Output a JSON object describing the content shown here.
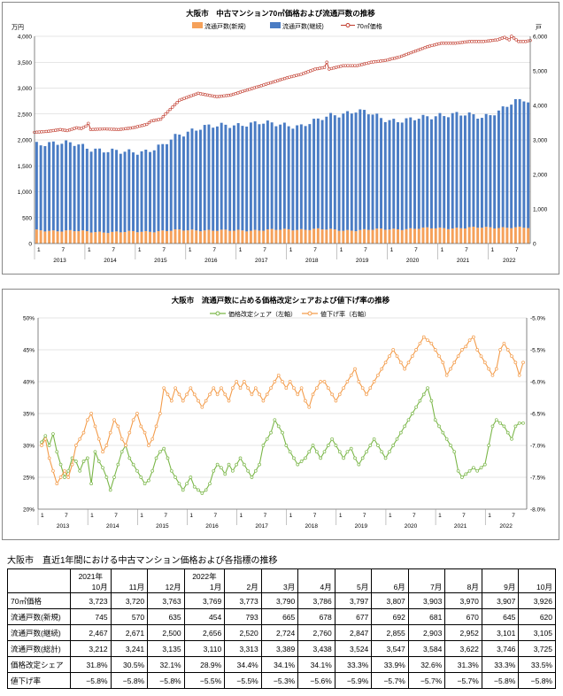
{
  "chart_data": [
    {
      "type": "bar",
      "title": "大阪市　中古マンション70㎡価格および流通戸数の推移",
      "left_unit": "万円",
      "right_unit": "戸",
      "ylim_left": [
        0,
        4000
      ],
      "ylim_right": [
        0,
        6000
      ],
      "left_ticks": [
        "0",
        "500",
        "1,000",
        "1,500",
        "2,000",
        "2,500",
        "3,000",
        "3,500",
        "4,000"
      ],
      "right_ticks": [
        "0",
        "1,000",
        "2,000",
        "3,000",
        "4,000",
        "5,000",
        "6,000"
      ],
      "legend": [
        "流通戸数(新規)",
        "流通戸数(継続)",
        "70㎡価格"
      ],
      "legend_position": "top-right",
      "colors": {
        "new": "#f5a15a",
        "cont": "#4a7cc4",
        "price": "#c0392b"
      },
      "years": [
        "2013",
        "2014",
        "2015",
        "2016",
        "2017",
        "2018",
        "2019",
        "2020",
        "2021",
        "2022"
      ],
      "month_ticks": [
        "1",
        "7"
      ],
      "series_anchors": {
        "price": [
          [
            0,
            3220
          ],
          [
            6,
            3250
          ],
          [
            11,
            3300
          ],
          [
            14,
            3270
          ],
          [
            18,
            3350
          ],
          [
            20,
            3330
          ],
          [
            22,
            3400
          ],
          [
            23,
            3480
          ],
          [
            24,
            3300
          ],
          [
            30,
            3320
          ],
          [
            36,
            3300
          ],
          [
            42,
            3350
          ],
          [
            48,
            3450
          ],
          [
            50,
            3550
          ],
          [
            54,
            3600
          ],
          [
            56,
            3750
          ],
          [
            59,
            3950
          ],
          [
            62,
            4150
          ],
          [
            66,
            4250
          ],
          [
            70,
            4350
          ],
          [
            74,
            4300
          ],
          [
            78,
            4250
          ],
          [
            84,
            4300
          ],
          [
            96,
            4550
          ],
          [
            108,
            4800
          ],
          [
            114,
            4900
          ],
          [
            120,
            5050
          ],
          [
            124,
            5100
          ],
          [
            125,
            5250
          ],
          [
            126,
            5050
          ],
          [
            132,
            5150
          ],
          [
            138,
            5150
          ],
          [
            144,
            5250
          ],
          [
            150,
            5300
          ],
          [
            156,
            5400
          ],
          [
            162,
            5550
          ],
          [
            168,
            5700
          ],
          [
            174,
            5800
          ],
          [
            180,
            5800
          ],
          [
            186,
            5850
          ],
          [
            192,
            5850
          ],
          [
            198,
            5900
          ],
          [
            201,
            5970
          ],
          [
            203,
            5900
          ],
          [
            204,
            6000
          ],
          [
            205,
            5950
          ],
          [
            207,
            5850
          ],
          [
            210,
            5850
          ],
          [
            212,
            5880
          ]
        ],
        "new": [
          [
            0,
            380
          ],
          [
            12,
            370
          ],
          [
            24,
            340
          ],
          [
            36,
            330
          ],
          [
            48,
            350
          ],
          [
            60,
            380
          ],
          [
            72,
            390
          ],
          [
            84,
            370
          ],
          [
            96,
            390
          ],
          [
            108,
            400
          ],
          [
            120,
            420
          ],
          [
            132,
            380
          ],
          [
            144,
            400
          ],
          [
            156,
            420
          ],
          [
            168,
            440
          ],
          [
            180,
            450
          ],
          [
            192,
            460
          ],
          [
            204,
            470
          ],
          [
            212,
            450
          ]
        ],
        "cont": [
          [
            0,
            2520
          ],
          [
            6,
            2550
          ],
          [
            12,
            2520
          ],
          [
            18,
            2500
          ],
          [
            24,
            2420
          ],
          [
            30,
            2350
          ],
          [
            36,
            2300
          ],
          [
            42,
            2320
          ],
          [
            48,
            2350
          ],
          [
            50,
            2380
          ],
          [
            54,
            2450
          ],
          [
            60,
            2700
          ],
          [
            66,
            2900
          ],
          [
            72,
            3000
          ],
          [
            78,
            3000
          ],
          [
            84,
            3050
          ],
          [
            90,
            3100
          ],
          [
            96,
            3100
          ],
          [
            102,
            3050
          ],
          [
            108,
            3050
          ],
          [
            114,
            3000
          ],
          [
            120,
            3100
          ],
          [
            126,
            3300
          ],
          [
            132,
            3400
          ],
          [
            138,
            3450
          ],
          [
            144,
            3350
          ],
          [
            150,
            3200
          ],
          [
            156,
            3150
          ],
          [
            162,
            3150
          ],
          [
            168,
            3200
          ],
          [
            174,
            3300
          ],
          [
            180,
            3300
          ],
          [
            186,
            3250
          ],
          [
            192,
            3200
          ],
          [
            198,
            3350
          ],
          [
            204,
            3550
          ],
          [
            210,
            3700
          ],
          [
            212,
            3650
          ]
        ]
      }
    },
    {
      "type": "line",
      "title": "大阪市　流通戸数に占める価格改定シェアおよび値下げ率の推移",
      "ylim_left": [
        20,
        50
      ],
      "ylim_right": [
        -8.0,
        -5.0
      ],
      "left_ticks": [
        "20%",
        "25%",
        "30%",
        "35%",
        "40%",
        "45%",
        "50%"
      ],
      "right_ticks": [
        "-8.0%",
        "-7.5%",
        "-7.0%",
        "-6.5%",
        "-6.0%",
        "-5.5%",
        "-5.0%"
      ],
      "legend": [
        "価格改定シェア（左軸）",
        "値下げ率（右軸）"
      ],
      "legend_position": "top-right",
      "colors": {
        "share": "#7ab648",
        "cut": "#f39c4b"
      },
      "years": [
        "2013",
        "2014",
        "2015",
        "2016",
        "2017",
        "2018",
        "2019",
        "2020",
        "2021",
        "2022"
      ],
      "month_ticks": [
        "1",
        "7"
      ],
      "series": [
        {
          "name": "価格改定シェア（左軸）",
          "values": [
            30.5,
            31.5,
            30,
            31.8,
            29,
            27,
            25,
            26,
            28,
            27.5,
            26,
            27.5,
            28,
            24,
            29,
            27.5,
            26.5,
            25,
            23,
            25,
            27,
            29,
            30,
            28,
            27,
            26,
            25,
            24,
            24.5,
            26,
            28,
            29,
            29.5,
            28,
            26,
            25,
            24,
            23,
            24,
            25,
            23.5,
            23,
            22.5,
            23,
            24,
            26,
            27,
            26.5,
            25.5,
            27,
            26,
            27,
            28,
            27,
            26,
            25,
            26,
            27,
            30,
            31,
            32,
            34,
            33,
            32,
            30,
            29,
            28,
            27,
            27.5,
            28,
            29,
            30,
            29,
            28,
            29,
            30,
            31,
            30,
            29,
            28,
            29,
            29.5,
            28,
            27,
            28,
            29,
            30,
            31,
            30,
            29,
            28,
            29,
            30,
            31,
            32,
            33,
            34,
            35,
            36,
            37,
            38,
            39,
            37,
            34,
            33,
            32,
            31,
            30,
            29,
            26,
            25,
            25.5,
            26,
            26.5,
            26,
            26.5,
            27,
            30,
            33,
            34,
            33.5,
            33,
            32,
            31,
            33,
            33.5,
            33.5
          ]
        },
        {
          "name": "値下げ率（右軸）",
          "values": [
            -7.0,
            -6.9,
            -7.2,
            -7.4,
            -7.6,
            -7.5,
            -7.4,
            -7.5,
            -7.3,
            -7.0,
            -6.9,
            -6.8,
            -6.6,
            -6.5,
            -6.7,
            -6.9,
            -7.1,
            -7.0,
            -6.8,
            -6.6,
            -6.7,
            -6.9,
            -7.0,
            -6.8,
            -6.6,
            -6.5,
            -6.7,
            -6.8,
            -7.0,
            -6.9,
            -6.7,
            -6.5,
            -6.1,
            -6.2,
            -6.3,
            -6.1,
            -6.2,
            -6.3,
            -6.2,
            -6.1,
            -6.2,
            -6.3,
            -6.4,
            -6.3,
            -6.2,
            -6.1,
            -6.2,
            -6.1,
            -6.2,
            -6.3,
            -6.1,
            -6.0,
            -6.1,
            -6.0,
            -6.1,
            -6.2,
            -6.1,
            -6.2,
            -6.3,
            -6.2,
            -6.1,
            -6.0,
            -5.9,
            -6.0,
            -6.1,
            -6.0,
            -6.1,
            -6.2,
            -6.1,
            -6.3,
            -6.4,
            -6.2,
            -6.1,
            -6.0,
            -6.0,
            -6.1,
            -6.2,
            -6.3,
            -6.2,
            -6.1,
            -6.0,
            -5.9,
            -5.8,
            -6.0,
            -6.1,
            -6.2,
            -6.1,
            -6.0,
            -5.9,
            -5.8,
            -5.7,
            -5.6,
            -5.5,
            -5.6,
            -5.7,
            -5.8,
            -5.7,
            -5.6,
            -5.5,
            -5.4,
            -5.3,
            -5.35,
            -5.4,
            -5.5,
            -5.6,
            -5.7,
            -5.9,
            -5.8,
            -5.7,
            -5.6,
            -5.5,
            -5.45,
            -5.35,
            -5.3,
            -5.5,
            -5.6,
            -5.7,
            -5.8,
            -5.9,
            -5.8,
            -5.5,
            -5.4,
            -5.5,
            -5.6,
            -5.7,
            -5.9,
            -5.7,
            -5.6,
            -5.7,
            -5.8,
            -5.8
          ]
        }
      ]
    }
  ],
  "table": {
    "title": "大阪市　直近1年間における中古マンション価格および各指標の推移",
    "year_labels": [
      "2021年",
      "",
      "",
      "2022年",
      "",
      "",
      "",
      "",
      "",
      "",
      "",
      "",
      ""
    ],
    "months": [
      "10月",
      "11月",
      "12月",
      "1月",
      "2月",
      "3月",
      "4月",
      "5月",
      "6月",
      "7月",
      "8月",
      "9月",
      "10月"
    ],
    "rows": [
      {
        "label": "70㎡価格",
        "values": [
          "3,723",
          "3,720",
          "3,763",
          "3,769",
          "3,773",
          "3,790",
          "3,786",
          "3,797",
          "3,807",
          "3,903",
          "3,970",
          "3,907",
          "3,926"
        ]
      },
      {
        "label": "流通戸数(新規)",
        "values": [
          "745",
          "570",
          "635",
          "454",
          "793",
          "665",
          "678",
          "677",
          "692",
          "681",
          "670",
          "645",
          "620"
        ]
      },
      {
        "label": "流通戸数(継続)",
        "values": [
          "2,467",
          "2,671",
          "2,500",
          "2,656",
          "2,520",
          "2,724",
          "2,760",
          "2,847",
          "2,855",
          "2,903",
          "2,952",
          "3,101",
          "3,105"
        ]
      },
      {
        "label": "流通戸数(総計)",
        "values": [
          "3,212",
          "3,241",
          "3,135",
          "3,110",
          "3,313",
          "3,389",
          "3,438",
          "3,524",
          "3,547",
          "3,584",
          "3,622",
          "3,746",
          "3,725"
        ]
      },
      {
        "label": "価格改定シェア",
        "values": [
          "31.8%",
          "30.5%",
          "32.1%",
          "28.9%",
          "34.4%",
          "34.1%",
          "34.1%",
          "33.3%",
          "33.9%",
          "32.6%",
          "31.3%",
          "33.3%",
          "33.5%"
        ]
      },
      {
        "label": "値下げ率",
        "values": [
          "−5.8%",
          "−5.8%",
          "−5.8%",
          "−5.5%",
          "−5.5%",
          "−5.3%",
          "−5.6%",
          "−5.9%",
          "−5.7%",
          "−5.7%",
          "−5.7%",
          "−5.8%",
          "−5.8%"
        ]
      }
    ]
  }
}
